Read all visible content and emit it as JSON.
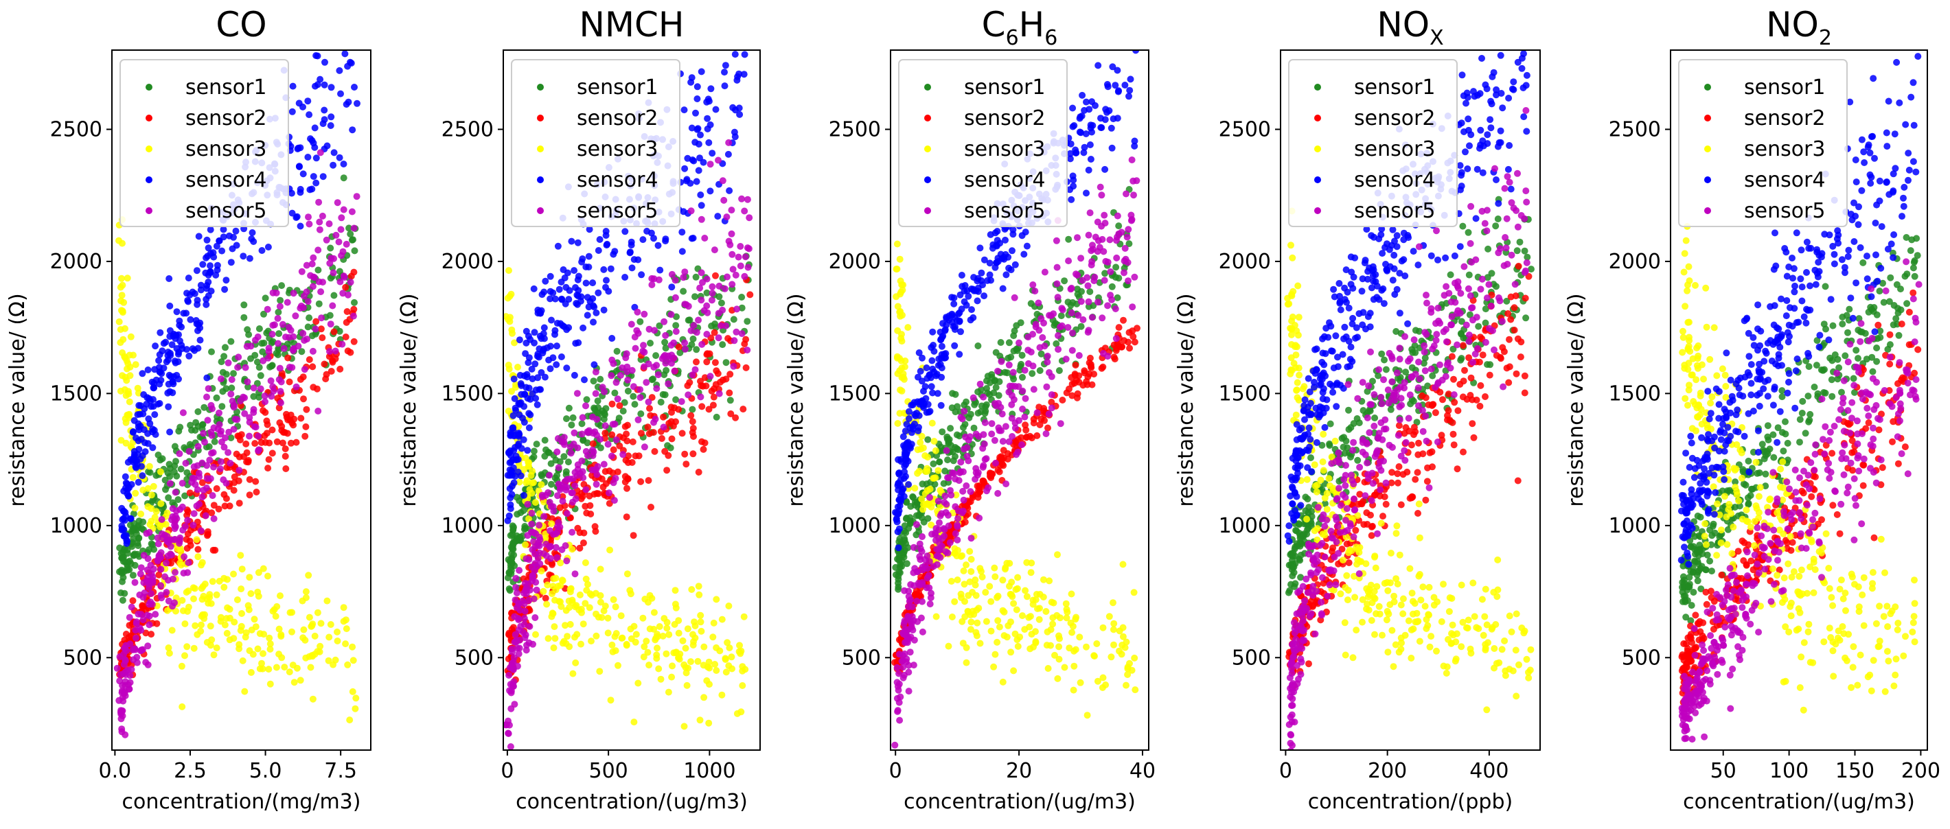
{
  "chart_data": [
    {
      "type": "scatter",
      "title": "CO",
      "title_sub": "",
      "title_tail": "",
      "xlabel": "concentration/(mg/m3)",
      "ylabel": "resistance value/ (Ω)",
      "xlim": [
        -0.1,
        8.5
      ],
      "ylim": [
        150,
        2800
      ],
      "xticks": [
        0.0,
        2.5,
        5.0,
        7.5
      ],
      "xtick_labels": [
        "0.0",
        "2.5",
        "5.0",
        "7.5"
      ],
      "yticks": [
        500,
        1000,
        1500,
        2000,
        2500
      ],
      "ytick_labels": [
        "500",
        "1000",
        "1500",
        "2000",
        "2500"
      ],
      "series": [
        {
          "name": "sensor1",
          "color": "#228B22",
          "count": 300,
          "trend": {
            "kind": "curve",
            "x0": 0.2,
            "x1": 8.0,
            "y0": 780,
            "y1": 2000,
            "pow": 0.7,
            "noise": 140
          }
        },
        {
          "name": "sensor2",
          "color": "#FF0000",
          "count": 300,
          "trend": {
            "kind": "curve",
            "x0": 0.2,
            "x1": 8.0,
            "y0": 460,
            "y1": 1750,
            "pow": 0.75,
            "noise": 120
          }
        },
        {
          "name": "sensor3",
          "color": "#FFFF00",
          "count": 300,
          "trend": {
            "kind": "vshape",
            "x0": 0.2,
            "x1": 8.0,
            "y0": 1900,
            "ymin": 700,
            "xmin": 2.5,
            "y1": 520,
            "noise": 110
          }
        },
        {
          "name": "sensor4",
          "color": "#0000FF",
          "count": 360,
          "trend": {
            "kind": "curve",
            "x0": 0.3,
            "x1": 8.0,
            "y0": 1000,
            "y1": 2680,
            "pow": 0.6,
            "noise": 170
          }
        },
        {
          "name": "sensor5",
          "color": "#BF00BF",
          "count": 360,
          "trend": {
            "kind": "curve",
            "x0": 0.2,
            "x1": 8.0,
            "y0": 270,
            "y1": 2100,
            "pow": 0.65,
            "noise": 190
          }
        }
      ]
    },
    {
      "type": "scatter",
      "title": "NMCH",
      "title_sub": "",
      "title_tail": "",
      "xlabel": "concentration/(ug/m3)",
      "ylabel": "resistance value/ (Ω)",
      "xlim": [
        -20,
        1250
      ],
      "ylim": [
        150,
        2800
      ],
      "xticks": [
        0,
        500,
        1000
      ],
      "xtick_labels": [
        "0",
        "500",
        "1000"
      ],
      "yticks": [
        500,
        1000,
        1500,
        2000,
        2500
      ],
      "ytick_labels": [
        "500",
        "1000",
        "1500",
        "2000",
        "2500"
      ],
      "series": [
        {
          "name": "sensor1",
          "color": "#228B22",
          "count": 300,
          "trend": {
            "kind": "curve",
            "x0": 10,
            "x1": 1200,
            "y0": 800,
            "y1": 1850,
            "pow": 0.55,
            "noise": 150
          }
        },
        {
          "name": "sensor2",
          "color": "#FF0000",
          "count": 300,
          "trend": {
            "kind": "curve",
            "x0": 10,
            "x1": 1200,
            "y0": 460,
            "y1": 1650,
            "pow": 0.55,
            "noise": 140
          }
        },
        {
          "name": "sensor3",
          "color": "#FFFF00",
          "count": 300,
          "trend": {
            "kind": "vshape",
            "x0": 10,
            "x1": 1200,
            "y0": 1900,
            "ymin": 700,
            "xmin": 250,
            "y1": 480,
            "noise": 110
          }
        },
        {
          "name": "sensor4",
          "color": "#0000FF",
          "count": 360,
          "trend": {
            "kind": "curve",
            "x0": 10,
            "x1": 1180,
            "y0": 1050,
            "y1": 2550,
            "pow": 0.45,
            "noise": 200
          }
        },
        {
          "name": "sensor5",
          "color": "#BF00BF",
          "count": 360,
          "trend": {
            "kind": "curve",
            "x0": 10,
            "x1": 1200,
            "y0": 270,
            "y1": 2050,
            "pow": 0.5,
            "noise": 200
          }
        }
      ]
    },
    {
      "type": "scatter",
      "title": "C",
      "title_sub": "6",
      "title_tail": "H6",
      "xlabel": "concentration/(ug/m3)",
      "ylabel": "resistance value/ (Ω)",
      "xlim": [
        -0.8,
        41
      ],
      "ylim": [
        150,
        2800
      ],
      "xticks": [
        0,
        20,
        40
      ],
      "xtick_labels": [
        "0",
        "20",
        "40"
      ],
      "yticks": [
        500,
        1000,
        1500,
        2000,
        2500
      ],
      "ytick_labels": [
        "500",
        "1000",
        "1500",
        "2000",
        "2500"
      ],
      "series": [
        {
          "name": "sensor1",
          "color": "#228B22",
          "count": 300,
          "trend": {
            "kind": "curve",
            "x0": 0.3,
            "x1": 38,
            "y0": 800,
            "y1": 2000,
            "pow": 0.6,
            "noise": 120
          }
        },
        {
          "name": "sensor2",
          "color": "#FF0000",
          "count": 300,
          "trend": {
            "kind": "curve",
            "x0": 0.3,
            "x1": 39,
            "y0": 450,
            "y1": 1750,
            "pow": 0.6,
            "noise": 30
          }
        },
        {
          "name": "sensor3",
          "color": "#FFFF00",
          "count": 300,
          "trend": {
            "kind": "vshape",
            "x0": 0.3,
            "x1": 39,
            "y0": 1900,
            "ymin": 720,
            "xmin": 12,
            "y1": 520,
            "noise": 110
          }
        },
        {
          "name": "sensor4",
          "color": "#0000FF",
          "count": 360,
          "trend": {
            "kind": "curve",
            "x0": 0.3,
            "x1": 39,
            "y0": 1000,
            "y1": 2680,
            "pow": 0.55,
            "noise": 110
          }
        },
        {
          "name": "sensor5",
          "color": "#BF00BF",
          "count": 360,
          "trend": {
            "kind": "curve",
            "x0": 0.3,
            "x1": 39,
            "y0": 270,
            "y1": 2100,
            "pow": 0.55,
            "noise": 170
          }
        }
      ]
    },
    {
      "type": "scatter",
      "title": "NO",
      "title_sub": "X",
      "title_tail": "",
      "xlabel": "concentration/(ppb)",
      "ylabel": "resistance value/ (Ω)",
      "xlim": [
        -10,
        500
      ],
      "ylim": [
        150,
        2800
      ],
      "xticks": [
        0,
        200,
        400
      ],
      "xtick_labels": [
        "0",
        "200",
        "400"
      ],
      "yticks": [
        500,
        1000,
        1500,
        2000,
        2500
      ],
      "ytick_labels": [
        "500",
        "1000",
        "1500",
        "2000",
        "2500"
      ],
      "series": [
        {
          "name": "sensor1",
          "color": "#228B22",
          "count": 300,
          "trend": {
            "kind": "curve",
            "x0": 10,
            "x1": 480,
            "y0": 790,
            "y1": 2000,
            "pow": 0.6,
            "noise": 150
          }
        },
        {
          "name": "sensor2",
          "color": "#FF0000",
          "count": 300,
          "trend": {
            "kind": "curve",
            "x0": 10,
            "x1": 480,
            "y0": 460,
            "y1": 1750,
            "pow": 0.65,
            "noise": 140
          }
        },
        {
          "name": "sensor3",
          "color": "#FFFF00",
          "count": 300,
          "trend": {
            "kind": "vshape",
            "x0": 10,
            "x1": 480,
            "y0": 1900,
            "ymin": 720,
            "xmin": 160,
            "y1": 540,
            "noise": 120
          }
        },
        {
          "name": "sensor4",
          "color": "#0000FF",
          "count": 360,
          "trend": {
            "kind": "curve",
            "x0": 10,
            "x1": 480,
            "y0": 1000,
            "y1": 2660,
            "pow": 0.55,
            "noise": 180
          }
        },
        {
          "name": "sensor5",
          "color": "#BF00BF",
          "count": 360,
          "trend": {
            "kind": "curve",
            "x0": 10,
            "x1": 480,
            "y0": 270,
            "y1": 2150,
            "pow": 0.55,
            "noise": 200
          }
        }
      ]
    },
    {
      "type": "scatter",
      "title": "NO",
      "title_sub": "2",
      "title_tail": "",
      "xlabel": "concentration/(ug/m3)",
      "ylabel": "resistance value/ (Ω)",
      "xlim": [
        10,
        205
      ],
      "ylim": [
        150,
        2800
      ],
      "xticks": [
        50,
        100,
        150,
        200
      ],
      "xtick_labels": [
        "50",
        "100",
        "150",
        "200"
      ],
      "yticks": [
        500,
        1000,
        1500,
        2000,
        2500
      ],
      "ytick_labels": [
        "500",
        "1000",
        "1500",
        "2000",
        "2500"
      ],
      "series": [
        {
          "name": "sensor1",
          "color": "#228B22",
          "count": 300,
          "trend": {
            "kind": "curve",
            "x0": 20,
            "x1": 198,
            "y0": 790,
            "y1": 2000,
            "pow": 0.9,
            "noise": 140
          }
        },
        {
          "name": "sensor2",
          "color": "#FF0000",
          "count": 300,
          "trend": {
            "kind": "curve",
            "x0": 20,
            "x1": 198,
            "y0": 450,
            "y1": 1600,
            "pow": 0.9,
            "noise": 150
          }
        },
        {
          "name": "sensor3",
          "color": "#FFFF00",
          "count": 300,
          "trend": {
            "kind": "vshape",
            "x0": 20,
            "x1": 198,
            "y0": 1900,
            "ymin": 720,
            "xmin": 120,
            "y1": 560,
            "noise": 130
          }
        },
        {
          "name": "sensor4",
          "color": "#0000FF",
          "count": 360,
          "trend": {
            "kind": "curve",
            "x0": 20,
            "x1": 198,
            "y0": 1000,
            "y1": 2500,
            "pow": 0.8,
            "noise": 220
          }
        },
        {
          "name": "sensor5",
          "color": "#BF00BF",
          "count": 360,
          "trend": {
            "kind": "curve",
            "x0": 20,
            "x1": 198,
            "y0": 270,
            "y1": 1700,
            "pow": 0.85,
            "noise": 200
          }
        }
      ]
    }
  ]
}
